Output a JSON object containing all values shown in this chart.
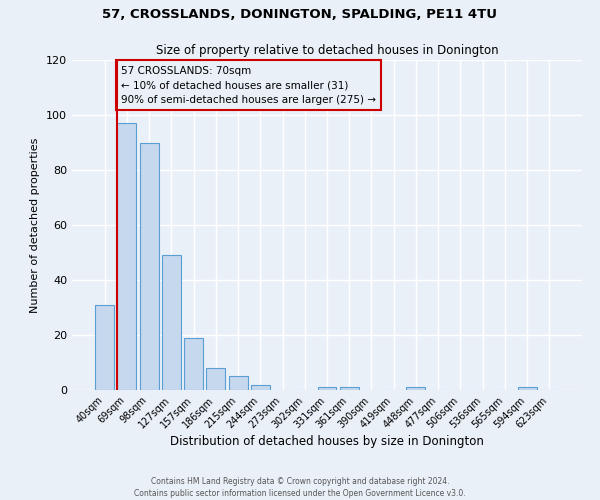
{
  "title": "57, CROSSLANDS, DONINGTON, SPALDING, PE11 4TU",
  "subtitle": "Size of property relative to detached houses in Donington",
  "xlabel": "Distribution of detached houses by size in Donington",
  "ylabel": "Number of detached properties",
  "bar_labels": [
    "40sqm",
    "69sqm",
    "98sqm",
    "127sqm",
    "157sqm",
    "186sqm",
    "215sqm",
    "244sqm",
    "273sqm",
    "302sqm",
    "331sqm",
    "361sqm",
    "390sqm",
    "419sqm",
    "448sqm",
    "477sqm",
    "506sqm",
    "536sqm",
    "565sqm",
    "594sqm",
    "623sqm"
  ],
  "bar_values": [
    31,
    97,
    90,
    49,
    19,
    8,
    5,
    2,
    0,
    0,
    1,
    1,
    0,
    0,
    1,
    0,
    0,
    0,
    0,
    1,
    0
  ],
  "bar_color": "#c5d8ed",
  "bar_edge_color": "#5a9fd4",
  "bg_color": "#eaf0f8",
  "grid_color": "#ffffff",
  "vline_color": "#cc0000",
  "annotation_box_color": "#cc0000",
  "ylim": [
    0,
    120
  ],
  "yticks": [
    0,
    20,
    40,
    60,
    80,
    100,
    120
  ],
  "footer_line1": "Contains HM Land Registry data © Crown copyright and database right 2024.",
  "footer_line2": "Contains public sector information licensed under the Open Government Licence v3.0."
}
